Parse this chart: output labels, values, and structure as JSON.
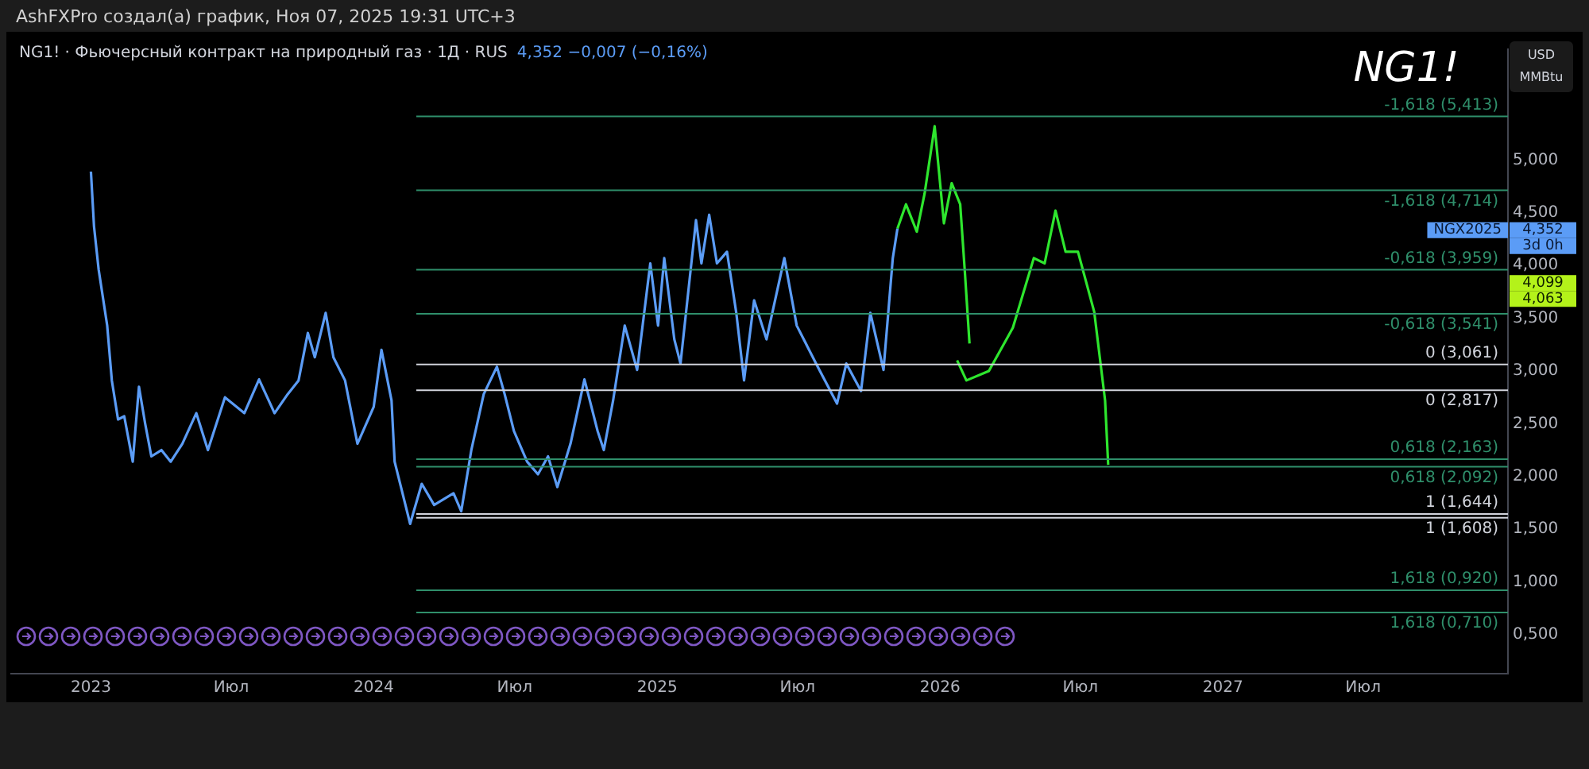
{
  "chart_data": {
    "type": "line",
    "title": "NG1! · Фьючерсный контракт на природный газ · 1Д · RUS",
    "subtitle": "4,352 −0,007 (−0,16%)",
    "ylabel": "USD MMBtu",
    "series": [
      {
        "color": "#5b9cf6",
        "x": [
          "2023-01-01",
          "2023-01-05",
          "2023-01-11",
          "2023-01-22",
          "2023-01-28",
          "2023-02-05",
          "2023-02-13",
          "2023-02-24",
          "2023-03-04",
          "2023-03-12",
          "2023-03-20",
          "2023-04-02",
          "2023-04-14",
          "2023-04-29",
          "2023-05-17",
          "2023-06-01",
          "2023-06-23",
          "2023-07-18",
          "2023-08-06",
          "2023-08-26",
          "2023-09-12",
          "2023-09-26",
          "2023-10-08",
          "2023-10-17",
          "2023-10-31",
          "2023-11-10",
          "2023-11-25",
          "2023-12-11",
          "2024-01-01",
          "2024-01-11",
          "2024-01-24",
          "2024-01-28",
          "2024-02-13",
          "2024-02-17",
          "2024-03-03",
          "2024-03-19",
          "2024-04-13",
          "2024-04-23",
          "2024-05-06",
          "2024-05-22",
          "2024-06-08",
          "2024-06-18",
          "2024-06-30",
          "2024-07-17",
          "2024-07-31",
          "2024-08-13",
          "2024-08-25",
          "2024-09-11",
          "2024-09-29",
          "2024-10-16",
          "2024-10-24",
          "2024-11-05",
          "2024-11-20",
          "2024-12-06",
          "2024-12-23",
          "2025-01-02",
          "2025-01-10",
          "2025-01-23",
          "2025-01-31",
          "2025-02-20",
          "2025-02-27",
          "2025-03-09",
          "2025-03-19",
          "2025-04-01",
          "2025-04-13",
          "2025-04-23",
          "2025-05-06",
          "2025-05-22",
          "2025-06-14",
          "2025-06-30",
          "2025-07-25",
          "2025-08-21",
          "2025-09-02",
          "2025-09-21",
          "2025-10-03",
          "2025-10-20",
          "2025-11-01",
          "2025-11-07"
        ],
        "values": [
          4.89,
          4.37,
          3.96,
          3.43,
          2.91,
          2.54,
          2.57,
          2.14,
          2.85,
          2.5,
          2.19,
          2.25,
          2.14,
          2.31,
          2.6,
          2.25,
          2.75,
          2.6,
          2.92,
          2.6,
          2.78,
          2.91,
          3.36,
          3.13,
          3.55,
          3.13,
          2.91,
          2.31,
          2.66,
          3.2,
          2.72,
          2.14,
          1.67,
          1.55,
          1.93,
          1.73,
          1.84,
          1.67,
          2.25,
          2.78,
          3.04,
          2.78,
          2.43,
          2.14,
          2.02,
          2.19,
          1.9,
          2.31,
          2.92,
          2.43,
          2.25,
          2.72,
          3.43,
          3.01,
          4.02,
          3.43,
          4.07,
          3.3,
          3.07,
          4.43,
          4.02,
          4.48,
          4.02,
          4.13,
          3.55,
          2.91,
          3.67,
          3.3,
          4.07,
          3.43,
          3.07,
          2.69,
          3.07,
          2.81,
          3.55,
          3.01,
          4.07,
          4.35
        ]
      },
      {
        "color": "#2ee62e",
        "x": [
          "2025-11-07",
          "2025-11-18",
          "2025-12-02",
          "2025-12-12",
          "2025-12-25",
          "2026-01-06",
          "2026-01-16",
          "2026-01-27",
          "2026-02-02",
          "2026-02-08"
        ],
        "values": [
          4.35,
          4.58,
          4.32,
          4.68,
          5.32,
          4.4,
          4.78,
          4.58,
          3.94,
          3.26
        ]
      },
      {
        "color": "#2ee62e",
        "x": [
          "2026-01-23",
          "2026-02-04",
          "2026-03-05",
          "2026-04-05",
          "2026-05-02",
          "2026-05-16",
          "2026-05-30",
          "2026-06-12",
          "2026-06-28",
          "2026-07-19",
          "2026-08-02",
          "2026-08-06"
        ],
        "values": [
          3.1,
          2.91,
          3.0,
          3.41,
          4.07,
          4.02,
          4.52,
          4.13,
          4.13,
          3.56,
          2.72,
          2.11
        ]
      }
    ],
    "xlim": [
      "2022-09-20",
      "2028-01-04"
    ],
    "xticks": [
      {
        "value": "2023-01-01",
        "label": "2023"
      },
      {
        "value": "2023-07-01",
        "label": "Июл"
      },
      {
        "value": "2024-01-01",
        "label": "2024"
      },
      {
        "value": "2024-07-01",
        "label": "Июл"
      },
      {
        "value": "2025-01-01",
        "label": "2025"
      },
      {
        "value": "2025-07-01",
        "label": "Июл"
      },
      {
        "value": "2026-01-01",
        "label": "2026"
      },
      {
        "value": "2026-07-01",
        "label": "Июл"
      },
      {
        "value": "2027-01-01",
        "label": "2027"
      },
      {
        "value": "2027-07-01",
        "label": "Июл"
      }
    ],
    "ylim": [
      0.13,
      6.05
    ],
    "yticks": [
      {
        "value": 0.5,
        "label": "0,500"
      },
      {
        "value": 1,
        "label": "1,000"
      },
      {
        "value": 1.5,
        "label": "1,500"
      },
      {
        "value": 2,
        "label": "2,000"
      },
      {
        "value": 2.5,
        "label": "2,500"
      },
      {
        "value": 3,
        "label": "3,000"
      },
      {
        "value": 3.5,
        "label": "3,500"
      },
      {
        "value": 4,
        "label": "4,000"
      },
      {
        "value": 4.5,
        "label": "4,500"
      },
      {
        "value": 5,
        "label": "5,000"
      }
    ],
    "ref_lines": [
      {
        "axis": "y",
        "value": 5.413,
        "label": "-1,618 (5,413)",
        "color": "#2f8f6b"
      },
      {
        "axis": "y",
        "value": 4.714,
        "label": "-1,618 (4,714)",
        "color": "#2f8f6b"
      },
      {
        "axis": "y",
        "value": 3.959,
        "label": "-0,618 (3,959)",
        "color": "#2f8f6b"
      },
      {
        "axis": "y",
        "value": 3.541,
        "label": "-0,618 (3,541)",
        "color": "#2f8f6b"
      },
      {
        "axis": "y",
        "value": 3.061,
        "label": "0 (3,061)",
        "color": "#d1d4dc"
      },
      {
        "axis": "y",
        "value": 2.817,
        "label": "0 (2,817)",
        "color": "#d1d4dc"
      },
      {
        "axis": "y",
        "value": 2.163,
        "label": "0,618 (2,163)",
        "color": "#2f8f6b"
      },
      {
        "axis": "y",
        "value": 2.092,
        "label": "0,618 (2,092)",
        "color": "#2f8f6b"
      },
      {
        "axis": "y",
        "value": 1.644,
        "label": "1 (1,644)",
        "color": "#d1d4dc"
      },
      {
        "axis": "y",
        "value": 1.608,
        "label": "1 (1,608)",
        "color": "#d1d4dc"
      },
      {
        "axis": "y",
        "value": 0.92,
        "label": "1,618 (0,920)",
        "color": "#2f8f6b"
      },
      {
        "axis": "y",
        "value": 0.71,
        "label": "1,618 (0,710)",
        "color": "#2f8f6b"
      }
    ],
    "annotations": [
      "AshFXPro создал(а) график, Ноя 07, 2025 19:31 UTC+3",
      "NG1!",
      "NGX2025",
      "4,352",
      "3d 0h",
      "4,099",
      "4,063"
    ]
  }
}
